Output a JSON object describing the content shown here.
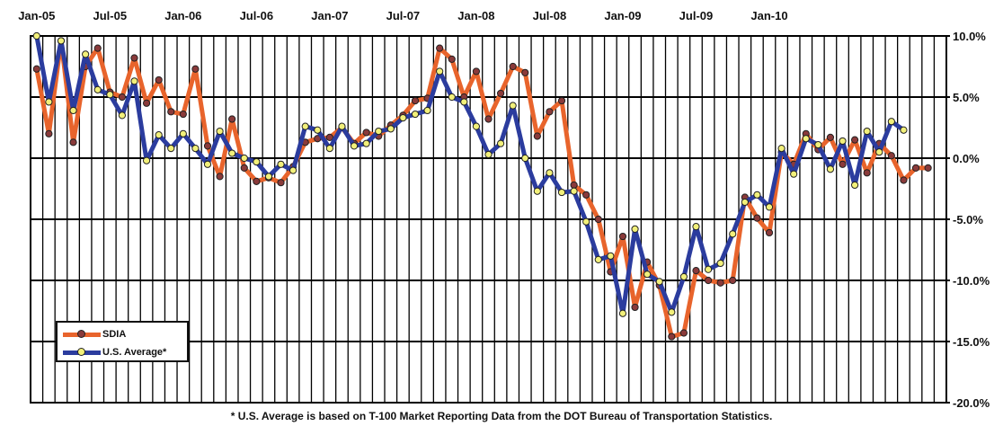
{
  "chart_data": {
    "type": "line",
    "title": "",
    "xlabel": "",
    "ylabel": "",
    "x_tick_labels": [
      "Jan-05",
      "Jul-05",
      "Jan-06",
      "Jul-06",
      "Jan-07",
      "Jul-07",
      "Jan-08",
      "Jul-08",
      "Jan-09",
      "Jul-09",
      "Jan-10"
    ],
    "y_tick_labels": [
      "10.0%",
      "5.0%",
      "0.0%",
      "-5.0%",
      "-10.0%",
      "-15.0%",
      "-20.0%"
    ],
    "ylim": [
      -20,
      10
    ],
    "grid": true,
    "legend_position": "bottom-left",
    "colors": {
      "sdia": "#e8642c",
      "us_average": "#2b3c9e",
      "sdia_marker": "#8a3a3a",
      "us_marker": "#f2f07a"
    },
    "series": [
      {
        "name": "SDIA",
        "values": [
          7.3,
          2.0,
          9.6,
          1.3,
          7.5,
          9.0,
          5.4,
          5.0,
          8.2,
          4.5,
          6.4,
          3.8,
          3.6,
          7.3,
          1.0,
          -1.5,
          3.2,
          -0.8,
          -1.9,
          -1.6,
          -2.0,
          -0.7,
          1.3,
          1.6,
          1.7,
          2.5,
          1.2,
          2.1,
          1.8,
          2.7,
          3.5,
          4.7,
          4.9,
          9.0,
          8.1,
          5.0,
          7.1,
          3.2,
          5.3,
          7.5,
          7.0,
          1.8,
          3.8,
          4.7,
          -2.2,
          -3.0,
          -5.0,
          -9.3,
          -6.4,
          -12.2,
          -8.5,
          -10.4,
          -14.6,
          -14.3,
          -9.2,
          -10.0,
          -10.2,
          -10.0,
          -3.2,
          -4.9,
          -6.1,
          0.5,
          -0.5,
          2.0,
          0.7,
          1.7,
          -0.5,
          1.5,
          -1.2,
          1.2,
          0.2,
          -1.8,
          -0.8,
          -0.8
        ]
      },
      {
        "name": "U.S. Average*",
        "values": [
          10.0,
          4.6,
          9.6,
          3.9,
          8.5,
          5.6,
          5.2,
          3.5,
          6.3,
          -0.2,
          1.9,
          0.8,
          2.0,
          0.8,
          -0.5,
          2.2,
          0.4,
          0.0,
          -0.3,
          -1.5,
          -0.5,
          -1.0,
          2.6,
          2.3,
          0.8,
          2.6,
          1.0,
          1.2,
          2.2,
          2.4,
          3.3,
          3.6,
          3.9,
          7.1,
          5.0,
          4.6,
          2.6,
          0.3,
          1.2,
          4.3,
          0.0,
          -2.7,
          -1.2,
          -2.8,
          -2.7,
          -5.2,
          -8.3,
          -8.0,
          -12.7,
          -5.8,
          -9.5,
          -10.1,
          -12.6,
          -9.7,
          -5.6,
          -9.1,
          -8.6,
          -6.2,
          -3.6,
          -3.0,
          -4.0,
          0.8,
          -1.3,
          1.6,
          1.1,
          -0.9,
          1.4,
          -2.2,
          2.2,
          0.5,
          3.0,
          2.3
        ]
      }
    ]
  },
  "legend": {
    "items": [
      {
        "label": "SDIA"
      },
      {
        "label": "U.S. Average*"
      }
    ]
  },
  "footnote": "* U.S. Average is based on T-100 Market Reporting Data from the DOT Bureau of Transportation Statistics."
}
